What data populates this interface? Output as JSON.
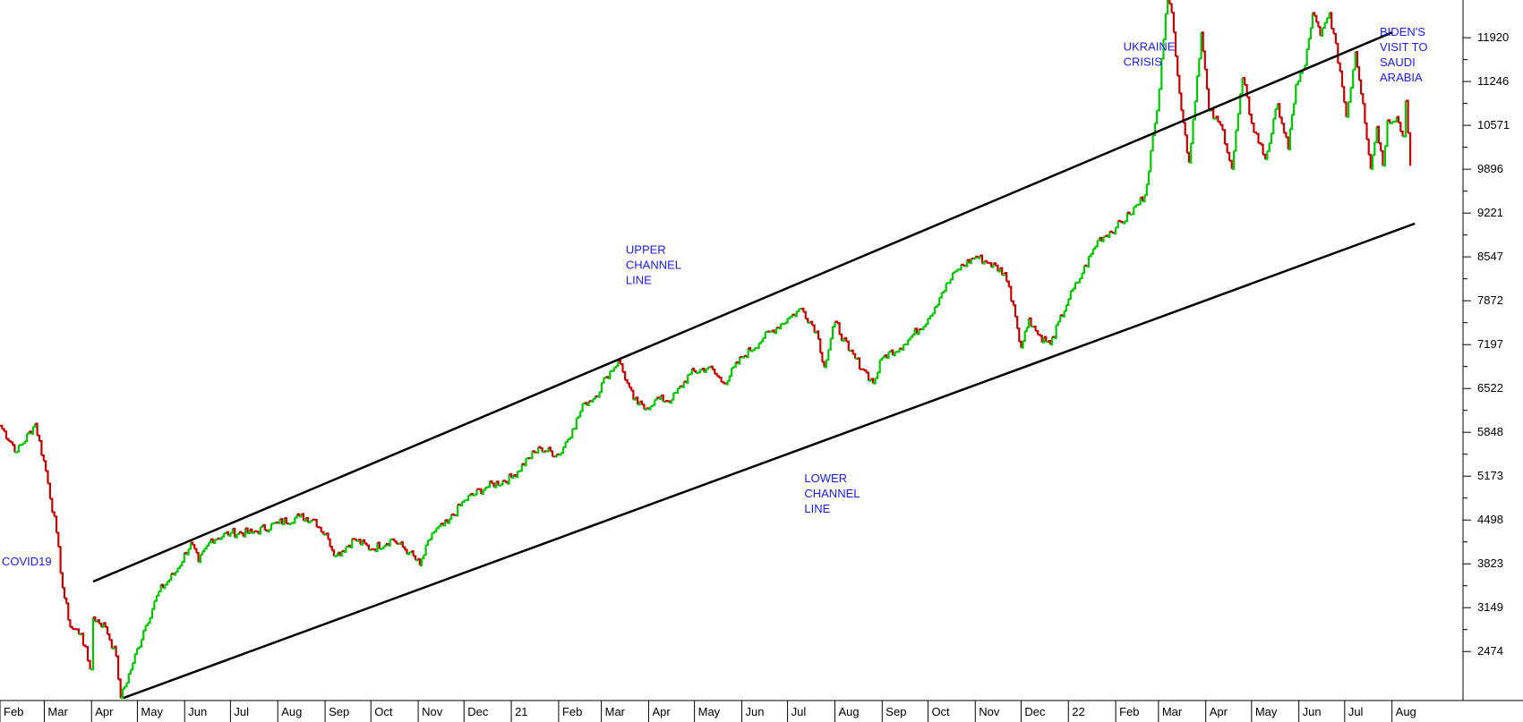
{
  "chart_data": {
    "type": "line",
    "title": "",
    "xlabel": "",
    "ylabel": "",
    "colors": {
      "up": "#00c800",
      "down": "#c80000",
      "trendline": "#000000",
      "annotation": "#1a1aff"
    },
    "y_ticks": [
      2474,
      3149,
      3823,
      4498,
      5173,
      5848,
      6522,
      7197,
      7872,
      8547,
      9221,
      9896,
      10571,
      11246,
      11920
    ],
    "ylim": [
      1720,
      12500
    ],
    "x_range": [
      "2020-02-01",
      "2022-08-10"
    ],
    "x_tick_labels": [
      {
        "date": "2020-02-01",
        "label": "Feb"
      },
      {
        "date": "2020-03-01",
        "label": "Mar"
      },
      {
        "date": "2020-04-01",
        "label": "Apr"
      },
      {
        "date": "2020-05-01",
        "label": "May"
      },
      {
        "date": "2020-06-01",
        "label": "Jun"
      },
      {
        "date": "2020-07-01",
        "label": "Jul"
      },
      {
        "date": "2020-08-01",
        "label": "Aug"
      },
      {
        "date": "2020-09-01",
        "label": "Sep"
      },
      {
        "date": "2020-10-01",
        "label": "Oct"
      },
      {
        "date": "2020-11-01",
        "label": "Nov"
      },
      {
        "date": "2020-12-01",
        "label": "Dec"
      },
      {
        "date": "2021-01-01",
        "label": "21"
      },
      {
        "date": "2021-02-01",
        "label": "Feb"
      },
      {
        "date": "2021-03-01",
        "label": "Mar"
      },
      {
        "date": "2021-04-01",
        "label": "Apr"
      },
      {
        "date": "2021-05-01",
        "label": "May"
      },
      {
        "date": "2021-06-01",
        "label": "Jun"
      },
      {
        "date": "2021-07-01",
        "label": "Jul"
      },
      {
        "date": "2021-08-01",
        "label": "Aug"
      },
      {
        "date": "2021-09-01",
        "label": "Sep"
      },
      {
        "date": "2021-10-01",
        "label": "Oct"
      },
      {
        "date": "2021-11-01",
        "label": "Nov"
      },
      {
        "date": "2021-12-01",
        "label": "Dec"
      },
      {
        "date": "2022-01-01",
        "label": "22"
      },
      {
        "date": "2022-02-01",
        "label": "Feb"
      },
      {
        "date": "2022-03-01",
        "label": "Mar"
      },
      {
        "date": "2022-04-01",
        "label": "Apr"
      },
      {
        "date": "2022-05-01",
        "label": "May"
      },
      {
        "date": "2022-06-01",
        "label": "Jun"
      },
      {
        "date": "2022-07-01",
        "label": "Jul"
      },
      {
        "date": "2022-08-01",
        "label": "Aug"
      }
    ],
    "series": [
      {
        "points": [
          [
            "2020-02-01",
            5950
          ],
          [
            "2020-02-12",
            5550
          ],
          [
            "2020-02-24",
            5980
          ],
          [
            "2020-03-02",
            5250
          ],
          [
            "2020-03-09",
            4300
          ],
          [
            "2020-03-13",
            3450
          ],
          [
            "2020-03-18",
            2850
          ],
          [
            "2020-03-25",
            2750
          ],
          [
            "2020-03-31",
            2200
          ],
          [
            "2020-04-02",
            3000
          ],
          [
            "2020-04-10",
            2850
          ],
          [
            "2020-04-17",
            2400
          ],
          [
            "2020-04-20",
            1760
          ],
          [
            "2020-04-28",
            2300
          ],
          [
            "2020-05-05",
            2800
          ],
          [
            "2020-05-15",
            3400
          ],
          [
            "2020-05-26",
            3700
          ],
          [
            "2020-06-05",
            4150
          ],
          [
            "2020-06-10",
            3850
          ],
          [
            "2020-06-18",
            4200
          ],
          [
            "2020-07-01",
            4300
          ],
          [
            "2020-07-15",
            4300
          ],
          [
            "2020-08-01",
            4450
          ],
          [
            "2020-08-15",
            4550
          ],
          [
            "2020-08-25",
            4500
          ],
          [
            "2020-09-03",
            4200
          ],
          [
            "2020-09-08",
            3950
          ],
          [
            "2020-09-20",
            4200
          ],
          [
            "2020-10-01",
            4050
          ],
          [
            "2020-10-15",
            4200
          ],
          [
            "2020-10-26",
            4000
          ],
          [
            "2020-11-02",
            3800
          ],
          [
            "2020-11-10",
            4300
          ],
          [
            "2020-11-20",
            4450
          ],
          [
            "2020-12-01",
            4800
          ],
          [
            "2020-12-15",
            5000
          ],
          [
            "2021-01-01",
            5150
          ],
          [
            "2021-01-12",
            5450
          ],
          [
            "2021-01-20",
            5600
          ],
          [
            "2021-02-01",
            5500
          ],
          [
            "2021-02-10",
            5900
          ],
          [
            "2021-02-18",
            6300
          ],
          [
            "2021-02-25",
            6400
          ],
          [
            "2021-03-04",
            6700
          ],
          [
            "2021-03-12",
            6950
          ],
          [
            "2021-03-18",
            6600
          ],
          [
            "2021-03-22",
            6350
          ],
          [
            "2021-03-29",
            6200
          ],
          [
            "2021-04-05",
            6350
          ],
          [
            "2021-04-16",
            6350
          ],
          [
            "2021-04-28",
            6750
          ],
          [
            "2021-05-10",
            6850
          ],
          [
            "2021-05-20",
            6600
          ],
          [
            "2021-06-01",
            7000
          ],
          [
            "2021-06-15",
            7300
          ],
          [
            "2021-07-01",
            7600
          ],
          [
            "2021-07-10",
            7750
          ],
          [
            "2021-07-20",
            7400
          ],
          [
            "2021-07-25",
            6850
          ],
          [
            "2021-08-01",
            7550
          ],
          [
            "2021-08-10",
            7100
          ],
          [
            "2021-08-20",
            6800
          ],
          [
            "2021-08-26",
            6600
          ],
          [
            "2021-09-01",
            7000
          ],
          [
            "2021-09-15",
            7200
          ],
          [
            "2021-10-01",
            7600
          ],
          [
            "2021-10-10",
            8000
          ],
          [
            "2021-10-20",
            8350
          ],
          [
            "2021-11-01",
            8550
          ],
          [
            "2021-11-10",
            8450
          ],
          [
            "2021-11-20",
            8300
          ],
          [
            "2021-11-26",
            7800
          ],
          [
            "2021-12-01",
            7150
          ],
          [
            "2021-12-06",
            7600
          ],
          [
            "2021-12-12",
            7350
          ],
          [
            "2021-12-20",
            7200
          ],
          [
            "2022-01-01",
            7900
          ],
          [
            "2022-01-10",
            8300
          ],
          [
            "2022-01-20",
            8800
          ],
          [
            "2022-02-01",
            9000
          ],
          [
            "2022-02-10",
            9200
          ],
          [
            "2022-02-20",
            9500
          ],
          [
            "2022-02-28",
            10800
          ],
          [
            "2022-03-03",
            11600
          ],
          [
            "2022-03-07",
            12700
          ],
          [
            "2022-03-11",
            12000
          ],
          [
            "2022-03-16",
            10800
          ],
          [
            "2022-03-21",
            10000
          ],
          [
            "2022-03-29",
            12000
          ],
          [
            "2022-04-03",
            10800
          ],
          [
            "2022-04-12",
            10500
          ],
          [
            "2022-04-18",
            9900
          ],
          [
            "2022-04-25",
            11300
          ],
          [
            "2022-05-01",
            10600
          ],
          [
            "2022-05-10",
            10050
          ],
          [
            "2022-05-18",
            10900
          ],
          [
            "2022-05-25",
            10200
          ],
          [
            "2022-05-30",
            11200
          ],
          [
            "2022-06-05",
            11500
          ],
          [
            "2022-06-10",
            12300
          ],
          [
            "2022-06-15",
            11950
          ],
          [
            "2022-06-21",
            12300
          ],
          [
            "2022-06-28",
            11400
          ],
          [
            "2022-07-02",
            10700
          ],
          [
            "2022-07-08",
            11700
          ],
          [
            "2022-07-13",
            10900
          ],
          [
            "2022-07-18",
            9900
          ],
          [
            "2022-07-22",
            10550
          ],
          [
            "2022-07-26",
            9950
          ],
          [
            "2022-07-29",
            10650
          ],
          [
            "2022-08-04",
            10700
          ],
          [
            "2022-08-08",
            10400
          ],
          [
            "2022-08-10",
            10950
          ],
          [
            "2022-08-13",
            9950
          ]
        ]
      }
    ],
    "trendlines": [
      {
        "name": "upper",
        "from": [
          "2020-04-02",
          3550
        ],
        "to": [
          "2022-08-01",
          12000
        ]
      },
      {
        "name": "lower",
        "from": [
          "2020-04-22",
          1760
        ],
        "to": [
          "2022-08-16",
          9060
        ]
      }
    ],
    "annotations": [
      {
        "lines": [
          "COVID19"
        ],
        "date": "2020-01-26",
        "value": 3800
      },
      {
        "lines": [
          "UPPER",
          "CHANNEL",
          "LINE"
        ],
        "date": "2021-03-17",
        "value": 8600
      },
      {
        "lines": [
          "LOWER",
          "CHANNEL",
          "LINE"
        ],
        "date": "2021-07-12",
        "value": 5080
      },
      {
        "lines": [
          "UKRAINE",
          "CRISIS"
        ],
        "date": "2022-02-06",
        "value": 11720
      },
      {
        "lines": [
          "BIDEN'S",
          "VISIT TO",
          "SAUDI",
          "ARABIA"
        ],
        "date": "2022-07-24",
        "value": 11950
      }
    ]
  }
}
